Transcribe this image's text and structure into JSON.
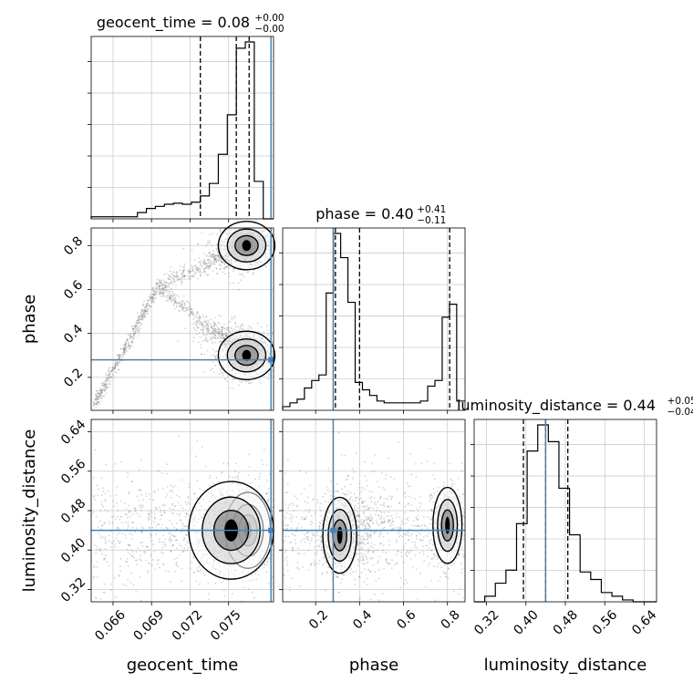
{
  "chart_data": {
    "type": "corner",
    "parameters": [
      {
        "name": "geocent_time",
        "label": "geocent_time",
        "range": [
          0.0643,
          0.0785
        ],
        "ticks": [
          "0.066",
          "0.069",
          "0.072",
          "0.075"
        ],
        "tick_values": [
          0.066,
          0.069,
          0.072,
          0.075
        ]
      },
      {
        "name": "phase",
        "label": "phase",
        "range": [
          0.05,
          0.88
        ],
        "ticks": [
          "0.2",
          "0.4",
          "0.6",
          "0.8"
        ],
        "tick_values": [
          0.2,
          0.4,
          0.6,
          0.8
        ]
      },
      {
        "name": "luminosity_distance",
        "label": "luminosity_distance",
        "range": [
          0.295,
          0.665
        ],
        "ticks": [
          "0.32",
          "0.40",
          "0.48",
          "0.56",
          "0.64"
        ],
        "tick_values": [
          0.32,
          0.4,
          0.48,
          0.56,
          0.64
        ]
      }
    ],
    "titles": [
      {
        "param": "geocent_time",
        "text": "geocent_time = 0.08",
        "sup": "+0.00",
        "sub": "−0.00"
      },
      {
        "param": "phase",
        "text": "phase = 0.40",
        "sup": "+0.41",
        "sub": "−0.11"
      },
      {
        "param": "luminosity_distance",
        "text": "luminosity_distance = 0.44",
        "sup": "+0.05",
        "sub": "−0.04"
      }
    ],
    "truths": {
      "geocent_time": 0.0783,
      "phase": 0.28,
      "luminosity_distance": 0.44
    },
    "quantiles": {
      "geocent_time": [
        0.0728,
        0.0756,
        0.0766
      ],
      "phase": [
        0.29,
        0.4,
        0.81
      ],
      "luminosity_distance": [
        0.395,
        0.44,
        0.485
      ]
    },
    "histograms": {
      "geocent_time": {
        "edges": [
          0.0643,
          0.0679,
          0.0686,
          0.0693,
          0.07,
          0.0707,
          0.0714,
          0.0721,
          0.0728,
          0.0735,
          0.0742,
          0.0749,
          0.0756,
          0.0763,
          0.077,
          0.0777,
          0.0785
        ],
        "counts": [
          0.01,
          0.03,
          0.05,
          0.06,
          0.07,
          0.075,
          0.07,
          0.08,
          0.11,
          0.17,
          0.31,
          0.5,
          0.82,
          0.85,
          0.18,
          0.0
        ]
      },
      "phase": {
        "edges": [
          0.05,
          0.083,
          0.116,
          0.149,
          0.182,
          0.215,
          0.248,
          0.281,
          0.314,
          0.347,
          0.38,
          0.413,
          0.446,
          0.479,
          0.512,
          0.545,
          0.578,
          0.611,
          0.644,
          0.677,
          0.71,
          0.743,
          0.776,
          0.809,
          0.842,
          0.88
        ],
        "counts": [
          0.02,
          0.04,
          0.06,
          0.12,
          0.16,
          0.19,
          0.63,
          0.95,
          0.82,
          0.58,
          0.15,
          0.11,
          0.08,
          0.05,
          0.04,
          0.04,
          0.04,
          0.04,
          0.04,
          0.05,
          0.13,
          0.16,
          0.5,
          0.57,
          0.05
        ]
      },
      "luminosity_distance": {
        "edges": [
          0.295,
          0.3165,
          0.338,
          0.3595,
          0.381,
          0.4025,
          0.424,
          0.4455,
          0.467,
          0.4885,
          0.51,
          0.5315,
          0.553,
          0.5745,
          0.596,
          0.6175,
          0.639,
          0.665
        ],
        "counts": [
          0.0,
          0.03,
          0.1,
          0.17,
          0.42,
          0.81,
          0.95,
          0.86,
          0.61,
          0.36,
          0.16,
          0.12,
          0.05,
          0.03,
          0.01,
          0.0,
          0.0
        ]
      }
    },
    "density_2d": {
      "phase|geocent_time": [
        {
          "cx": 0.0764,
          "cy": 0.8,
          "sx": 0.001,
          "sy": 0.05,
          "w": 60
        },
        {
          "cx": 0.0764,
          "cy": 0.3,
          "sx": 0.001,
          "sy": 0.05,
          "w": 60
        },
        {
          "cx": 0.0765,
          "cy": 0.35,
          "sx": 0.0008,
          "sy": 0.02,
          "w": 15
        },
        {
          "cx": 0.075,
          "cy": 0.75,
          "sx": 0.0012,
          "sy": 0.04,
          "w": 10
        },
        {
          "cx": 0.0745,
          "cy": 0.4,
          "sx": 0.0012,
          "sy": 0.04,
          "w": 10
        }
      ],
      "luminosity_distance|geocent_time": [
        {
          "cx": 0.0765,
          "cy": 0.44,
          "sx": 0.0008,
          "sy": 0.035,
          "w": 60
        },
        {
          "cx": 0.0752,
          "cy": 0.44,
          "sx": 0.0015,
          "sy": 0.045,
          "w": 30
        },
        {
          "cx": 0.073,
          "cy": 0.44,
          "sx": 0.0025,
          "sy": 0.045,
          "w": 10
        }
      ],
      "luminosity_distance|phase": [
        {
          "cx": 0.31,
          "cy": 0.43,
          "sx": 0.035,
          "sy": 0.035,
          "w": 55
        },
        {
          "cx": 0.8,
          "cy": 0.45,
          "sx": 0.03,
          "sy": 0.035,
          "w": 35
        },
        {
          "cx": 0.37,
          "cy": 0.44,
          "sx": 0.05,
          "sy": 0.045,
          "w": 15
        },
        {
          "cx": 0.56,
          "cy": 0.44,
          "sx": 0.12,
          "sy": 0.04,
          "w": 5
        }
      ]
    },
    "colors": {
      "truth": "#4682b4",
      "hist": "#000000",
      "scatter": "#555555",
      "grid": "#cccccc"
    },
    "grid": true
  }
}
